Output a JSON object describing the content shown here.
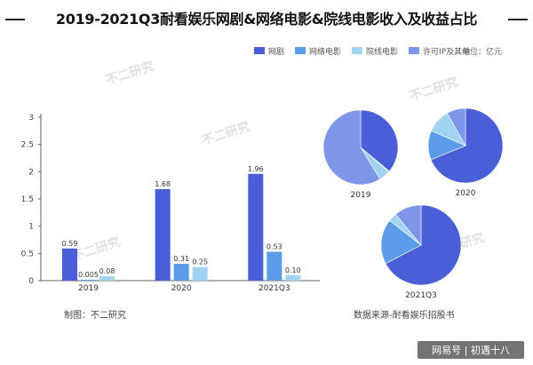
{
  "title": "2019-2021Q3耐看娱乐网剧&网络电影&院线电影收入及收益占比",
  "unit": "单位：亿元",
  "footer_left": "制图：不二研究",
  "footer_right": "数据来源-耐看娱乐招股书",
  "watermark": "不二研究",
  "brand": "网易号 | 初遇十八",
  "colors": {
    "web_drama": "#4a5ed8",
    "web_movie": "#5a9ce8",
    "theater_movie": "#9fd3f0",
    "license_ip": "#7f95e8"
  },
  "chart_data": [
    {
      "type": "bar",
      "categories": [
        "2019",
        "2020",
        "2021Q3"
      ],
      "series": [
        {
          "name": "网剧",
          "values": [
            0.59,
            1.68,
            1.96
          ],
          "labels": [
            "0.59",
            "1.68",
            "1.96"
          ]
        },
        {
          "name": "网络电影",
          "values": [
            0.005,
            0.31,
            0.53
          ],
          "labels": [
            "0.005",
            "0.31",
            "0.53"
          ]
        },
        {
          "name": "院线电影",
          "values": [
            0.08,
            0.25,
            0.1
          ],
          "labels": [
            "0.08",
            "0.25",
            "0.10"
          ]
        },
        {
          "name": "许可IP及其他",
          "values": [
            null,
            null,
            null
          ],
          "labels": [
            "",
            "",
            ""
          ]
        }
      ],
      "yticks": [
        "0",
        "0.5",
        "1",
        "1.5",
        "2",
        "2.5",
        "3"
      ],
      "ylim": [
        0,
        3
      ],
      "grid": false,
      "legend": "top-right"
    },
    {
      "type": "pie",
      "title": "2019",
      "labels": [
        "网剧",
        "网络电影",
        "院线电影",
        "许可IP及其他"
      ],
      "values": [
        0.59,
        0.005,
        0.08,
        0.96
      ]
    },
    {
      "type": "pie",
      "title": "2020",
      "labels": [
        "网剧",
        "网络电影",
        "院线电影",
        "许可IP及其他"
      ],
      "values": [
        1.68,
        0.31,
        0.25,
        0.2
      ]
    },
    {
      "type": "pie",
      "title": "2021Q3",
      "labels": [
        "网剧",
        "网络电影",
        "院线电影",
        "许可IP及其他"
      ],
      "values": [
        1.96,
        0.53,
        0.1,
        0.32
      ]
    }
  ]
}
